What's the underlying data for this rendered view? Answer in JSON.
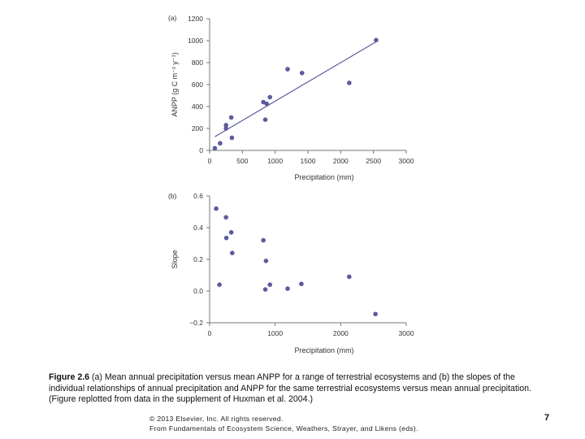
{
  "chart_data": [
    {
      "type": "scatter",
      "panel_label": "(a)",
      "xlabel": "Precipitation (mm)",
      "ylabel": "ANPP (g C m⁻² y⁻¹)",
      "xlim": [
        0,
        3000
      ],
      "ylim": [
        0,
        1200
      ],
      "xticks": [
        "0",
        "500",
        "1000",
        "1500",
        "2000",
        "2500",
        "3000"
      ],
      "yticks": [
        "0",
        "200",
        "400",
        "600",
        "800",
        "1000",
        "1200"
      ],
      "points": [
        {
          "x": 80,
          "y": 20
        },
        {
          "x": 160,
          "y": 65
        },
        {
          "x": 250,
          "y": 200
        },
        {
          "x": 250,
          "y": 230
        },
        {
          "x": 330,
          "y": 300
        },
        {
          "x": 340,
          "y": 115
        },
        {
          "x": 820,
          "y": 440
        },
        {
          "x": 850,
          "y": 280
        },
        {
          "x": 870,
          "y": 425
        },
        {
          "x": 920,
          "y": 485
        },
        {
          "x": 1190,
          "y": 740
        },
        {
          "x": 1410,
          "y": 705
        },
        {
          "x": 2130,
          "y": 615
        },
        {
          "x": 2540,
          "y": 1005
        }
      ],
      "fit_line": {
        "x1": 80,
        "y1": 125,
        "x2": 2540,
        "y2": 990
      },
      "point_color": "#5b5b9e",
      "line_color": "#5b5b9e"
    },
    {
      "type": "scatter",
      "panel_label": "(b)",
      "xlabel": "Precipitation (mm)",
      "ylabel": "Slope",
      "xlim": [
        0,
        3000
      ],
      "ylim": [
        -0.2,
        0.6
      ],
      "xticks": [
        "0",
        "1000",
        "2000",
        "3000"
      ],
      "yticks": [
        "−0.2",
        "0.0",
        "0.2",
        "0.4",
        "0.6"
      ],
      "ytick_values": [
        -0.2,
        0.0,
        0.2,
        0.4,
        0.6
      ],
      "xtick_values": [
        0,
        1000,
        2000,
        3000
      ],
      "points": [
        {
          "x": 100,
          "y": 0.52
        },
        {
          "x": 150,
          "y": 0.04
        },
        {
          "x": 250,
          "y": 0.465
        },
        {
          "x": 255,
          "y": 0.335
        },
        {
          "x": 330,
          "y": 0.37
        },
        {
          "x": 345,
          "y": 0.24
        },
        {
          "x": 820,
          "y": 0.32
        },
        {
          "x": 850,
          "y": 0.01
        },
        {
          "x": 860,
          "y": 0.19
        },
        {
          "x": 920,
          "y": 0.04
        },
        {
          "x": 1190,
          "y": 0.015
        },
        {
          "x": 1400,
          "y": 0.045
        },
        {
          "x": 2130,
          "y": 0.09
        },
        {
          "x": 2530,
          "y": -0.145
        }
      ],
      "point_color": "#5b5b9e"
    }
  ],
  "caption": {
    "label": "Figure 2.6",
    "text": " (a) Mean annual precipitation versus mean ANPP for a range of terrestrial ecosystems and (b) the slopes of the individual relationships of annual precipitation and ANPP for the same terrestrial ecosystems versus mean annual precipitation. (Figure replotted from data in the supplement of Huxman et al. 2004.)"
  },
  "footer": {
    "copyright": "© 2013 Elsevier, Inc. All rights reserved.",
    "source": "From Fundamentals of Ecosystem Science, Weathers, Strayer, and Likens (eds)."
  },
  "page_number": "7"
}
